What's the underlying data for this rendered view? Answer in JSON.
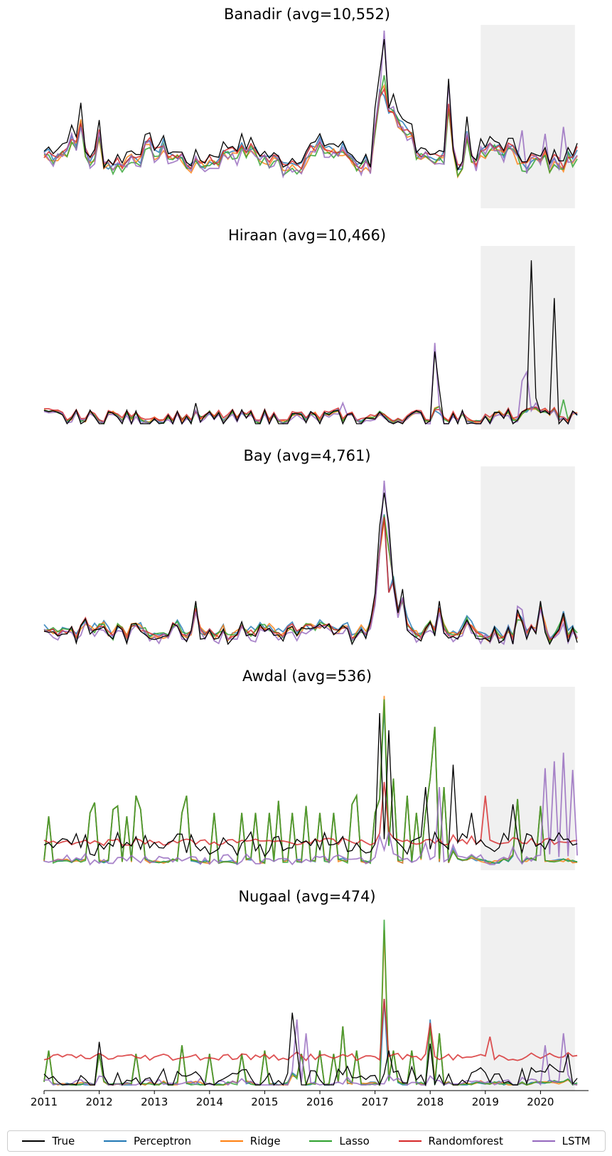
{
  "chart_data": {
    "type": "line",
    "x_start": "2011-01",
    "x_ticks": [
      "2011",
      "2012",
      "2013",
      "2014",
      "2015",
      "2016",
      "2017",
      "2018",
      "2019",
      "2020"
    ],
    "forecast_shade_start": "2018-12",
    "forecast_shade_end": "2020-08",
    "colors": {
      "True": "#000000",
      "Perceptron": "#1f77b4",
      "Ridge": "#ff7f0e",
      "Lasso": "#2ca02c",
      "Randomforest": "#d62728",
      "LSTM": "#9467bd"
    },
    "legend": [
      "True",
      "Perceptron",
      "Ridge",
      "Lasso",
      "Randomforest",
      "LSTM"
    ],
    "panels": [
      {
        "title": "Banadir  (avg=10,552)",
        "keys": [
          [
            0,
            0.68
          ],
          [
            1,
            0.6
          ],
          [
            4,
            0.5
          ],
          [
            8,
            0.8
          ],
          [
            10,
            0.55
          ],
          [
            13,
            0.92
          ],
          [
            14,
            0.5
          ],
          [
            16,
            0.6
          ],
          [
            18,
            0.8
          ],
          [
            20,
            0.66
          ],
          [
            22,
            0.66
          ],
          [
            23,
            0.55
          ],
          [
            25,
            0.5
          ],
          [
            28,
            0.44
          ],
          [
            31,
            0.46
          ],
          [
            36,
            0.45
          ],
          [
            40,
            0.46
          ],
          [
            46,
            0.48
          ],
          [
            51,
            0.5
          ],
          [
            56,
            0.53
          ],
          [
            62,
            0.52
          ],
          [
            67,
            0.55
          ],
          [
            72,
            0.56
          ],
          [
            78,
            0.53
          ],
          [
            83,
            0.52
          ],
          [
            85,
            0.56
          ],
          [
            88,
            0.48
          ],
          [
            92,
            0.52
          ],
          [
            95,
            0.5
          ],
          [
            97,
            0.6
          ],
          [
            100,
            0.7
          ],
          [
            101,
            0.76
          ],
          [
            103,
            0.66
          ],
          [
            106,
            0.6
          ],
          [
            108,
            0.56
          ],
          [
            112,
            0.58
          ],
          [
            114,
            0.62
          ],
          [
            117,
            0.64
          ],
          [
            119,
            0.6
          ],
          [
            121,
            0.62
          ],
          [
            124,
            0.56
          ],
          [
            126,
            0.55
          ],
          [
            128,
            0.52
          ],
          [
            130,
            0.53
          ],
          [
            132,
            0.55
          ],
          [
            136,
            0.56
          ],
          [
            139,
            0.55
          ],
          [
            142,
            0.57
          ],
          [
            145,
            0.6
          ],
          [
            150,
            0.6
          ],
          [
            152,
            0.64
          ],
          [
            153,
            0.6
          ],
          [
            154,
            0.62
          ],
          [
            155,
            0.58
          ],
          [
            156,
            0.56
          ]
        ],
        "true_over": [
          [
            1,
            0.61
          ],
          [
            3,
            0.5
          ],
          [
            4,
            0.54
          ],
          [
            7,
            0.74
          ],
          [
            8,
            0.8
          ],
          [
            9,
            0.58
          ],
          [
            10,
            0.72
          ],
          [
            12,
            0.96
          ],
          [
            13,
            0.5
          ],
          [
            16,
            0.6
          ],
          [
            18,
            0.9
          ],
          [
            21,
            0.72
          ],
          [
            22,
            0.66
          ],
          [
            23,
            0.6
          ],
          [
            24,
            0.52
          ],
          [
            30,
            0.47
          ],
          [
            34,
            0.45
          ],
          [
            38,
            0.47
          ],
          [
            44,
            0.48
          ],
          [
            46,
            0.46
          ],
          [
            48,
            0.52
          ],
          [
            50,
            0.48
          ],
          [
            54,
            0.52
          ],
          [
            56,
            0.55
          ],
          [
            58,
            0.52
          ],
          [
            62,
            0.5
          ],
          [
            66,
            0.54
          ],
          [
            68,
            0.55
          ],
          [
            70,
            0.47
          ],
          [
            72,
            0.58
          ],
          [
            76,
            0.56
          ],
          [
            78,
            0.49
          ],
          [
            80,
            0.54
          ],
          [
            84,
            0.52
          ],
          [
            86,
            0.5
          ],
          [
            88,
            0.54
          ],
          [
            90,
            0.6
          ],
          [
            92,
            0.55
          ],
          [
            94,
            0.54
          ],
          [
            96,
            0.62
          ],
          [
            98,
            0.53
          ],
          [
            100,
            0.5
          ],
          [
            102,
            0.58
          ],
          [
            104,
            0.54
          ],
          [
            106,
            0.56
          ],
          [
            108,
            0.5
          ],
          [
            110,
            0.58
          ],
          [
            112,
            0.62
          ],
          [
            114,
            0.66
          ],
          [
            116,
            0.64
          ],
          [
            118,
            0.58
          ],
          [
            119,
            0.62
          ],
          [
            120,
            0.66
          ],
          [
            122,
            0.62
          ],
          [
            123,
            0.7
          ],
          [
            124,
            0.73
          ],
          [
            125,
            0.5
          ],
          [
            126,
            0.48
          ],
          [
            128,
            0.52
          ],
          [
            130,
            0.57
          ],
          [
            132,
            0.6
          ],
          [
            134,
            0.56
          ],
          [
            136,
            0.58
          ],
          [
            138,
            0.55
          ],
          [
            140,
            0.62
          ],
          [
            142,
            0.56
          ],
          [
            144,
            0.58
          ],
          [
            146,
            0.52
          ],
          [
            148,
            0.5
          ],
          [
            150,
            0.55
          ],
          [
            152,
            0.52
          ],
          [
            154,
            0.6
          ],
          [
            155,
            0.48
          ],
          [
            156,
            0.5
          ]
        ],
        "spikes": [
          [
            100,
            1.0
          ],
          [
            101,
            0.95
          ],
          [
            120,
            0.68
          ],
          [
            125,
            0.75
          ]
        ],
        "lstm_spikes": [
          [
            100,
            1.08
          ],
          [
            120,
            0.85
          ],
          [
            130,
            0.72
          ],
          [
            148,
            0.72
          ]
        ]
      },
      {
        "title": "Hiraan  (avg=10,466)"
      },
      {
        "title": "Bay  (avg=4,761)"
      },
      {
        "title": "Awdal  (avg=536)"
      },
      {
        "title": "Nugaal  (avg=474)"
      }
    ]
  }
}
